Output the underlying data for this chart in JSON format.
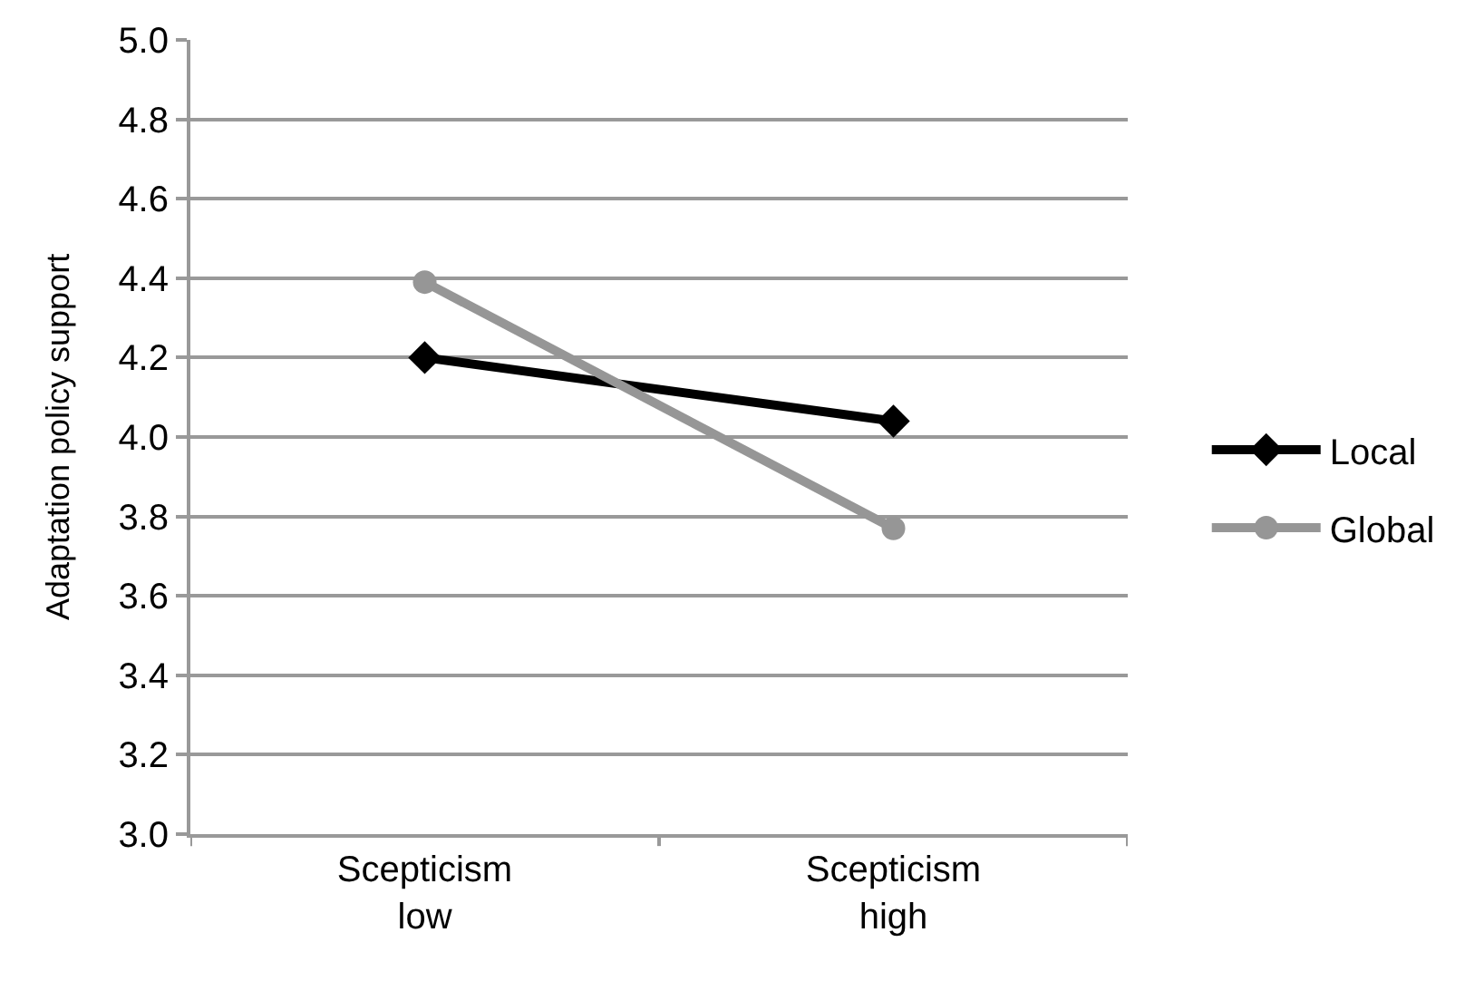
{
  "chart_data": {
    "type": "line",
    "ylabel": "Adaptation policy support",
    "categories": [
      "Scepticism\nlow",
      "Scepticism\nhigh"
    ],
    "series": [
      {
        "name": "Local",
        "color": "#000000",
        "values": [
          4.2,
          4.04
        ],
        "marker": "diamond"
      },
      {
        "name": "Global",
        "color": "#969696",
        "values": [
          4.39,
          3.77
        ],
        "marker": "circle"
      }
    ],
    "ylim": [
      3.0,
      5.0
    ],
    "yticks": [
      {
        "value": 3.0,
        "label": "3.0"
      },
      {
        "value": 3.2,
        "label": "3.2"
      },
      {
        "value": 3.4,
        "label": "3.4"
      },
      {
        "value": 3.6,
        "label": "3.6"
      },
      {
        "value": 3.8,
        "label": "3.8"
      },
      {
        "value": 4.0,
        "label": "4.0"
      },
      {
        "value": 4.2,
        "label": "4.2"
      },
      {
        "value": 4.4,
        "label": "4.4"
      },
      {
        "value": 4.6,
        "label": "4.6"
      },
      {
        "value": 4.8,
        "label": "4.8"
      },
      {
        "value": 5.0,
        "label": "5.0"
      }
    ],
    "grid": "y",
    "legend": "right",
    "line_style": "solid"
  }
}
